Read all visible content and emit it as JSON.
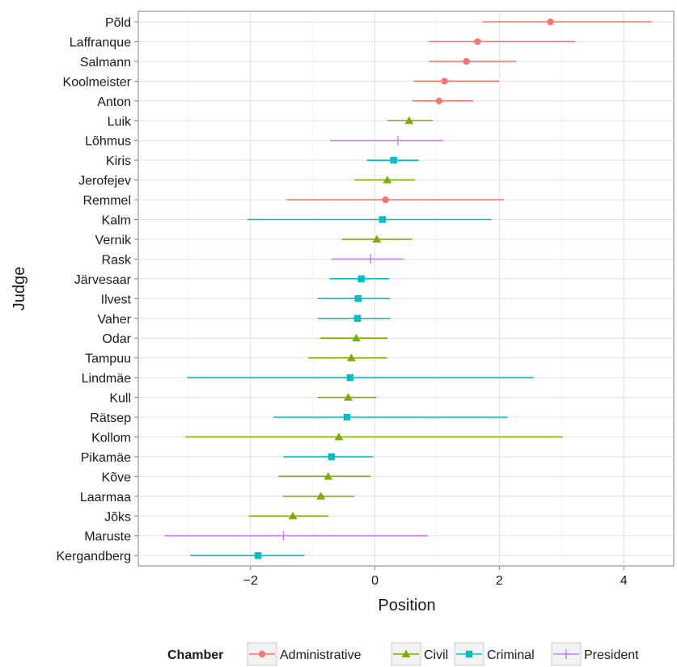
{
  "chart_data": {
    "type": "scatter",
    "xlabel": "Position",
    "ylabel": "Judge",
    "xlim": [
      -3.7,
      4.7
    ],
    "x_ticks": [
      -2,
      0,
      2,
      4
    ],
    "x_tick_labels": [
      "−2",
      "0",
      "2",
      "4"
    ],
    "grid": true,
    "legend_placement": "bottom",
    "legend_title": "Chamber",
    "legend": [
      {
        "name": "Administrative",
        "color": "#F8766D",
        "shape": "circle"
      },
      {
        "name": "Civil",
        "color": "#7CAE00",
        "shape": "triangle"
      },
      {
        "name": "Criminal",
        "color": "#00BFC4",
        "shape": "square"
      },
      {
        "name": "President",
        "color": "#C77CFF",
        "shape": "plus"
      }
    ],
    "judges": [
      {
        "name": "Põld",
        "chamber": "Administrative",
        "estimate": 2.82,
        "lower": 1.73,
        "upper": 4.45
      },
      {
        "name": "Laffranque",
        "chamber": "Administrative",
        "estimate": 1.65,
        "lower": 0.87,
        "upper": 3.22
      },
      {
        "name": "Salmann",
        "chamber": "Administrative",
        "estimate": 1.47,
        "lower": 0.87,
        "upper": 2.27
      },
      {
        "name": "Koolmeister",
        "chamber": "Administrative",
        "estimate": 1.12,
        "lower": 0.62,
        "upper": 2.0
      },
      {
        "name": "Anton",
        "chamber": "Administrative",
        "estimate": 1.03,
        "lower": 0.6,
        "upper": 1.58
      },
      {
        "name": "Luik",
        "chamber": "Civil",
        "estimate": 0.55,
        "lower": 0.2,
        "upper": 0.93
      },
      {
        "name": "Lõhmus",
        "chamber": "President",
        "estimate": 0.37,
        "lower": -0.72,
        "upper": 1.1
      },
      {
        "name": "Kiris",
        "chamber": "Criminal",
        "estimate": 0.3,
        "lower": -0.13,
        "upper": 0.7
      },
      {
        "name": "Jerofejev",
        "chamber": "Civil",
        "estimate": 0.2,
        "lower": -0.33,
        "upper": 0.64
      },
      {
        "name": "Remmel",
        "chamber": "Administrative",
        "estimate": 0.17,
        "lower": -1.42,
        "upper": 2.07
      },
      {
        "name": "Kalm",
        "chamber": "Criminal",
        "estimate": 0.12,
        "lower": -2.05,
        "upper": 1.87
      },
      {
        "name": "Vernik",
        "chamber": "Civil",
        "estimate": 0.03,
        "lower": -0.53,
        "upper": 0.6
      },
      {
        "name": "Rask",
        "chamber": "President",
        "estimate": -0.07,
        "lower": -0.7,
        "upper": 0.46
      },
      {
        "name": "Järvesaar",
        "chamber": "Criminal",
        "estimate": -0.22,
        "lower": -0.73,
        "upper": 0.23
      },
      {
        "name": "Ilvest",
        "chamber": "Criminal",
        "estimate": -0.27,
        "lower": -0.92,
        "upper": 0.24
      },
      {
        "name": "Vaher",
        "chamber": "Criminal",
        "estimate": -0.28,
        "lower": -0.92,
        "upper": 0.25
      },
      {
        "name": "Odar",
        "chamber": "Civil",
        "estimate": -0.3,
        "lower": -0.88,
        "upper": 0.2
      },
      {
        "name": "Tampuu",
        "chamber": "Civil",
        "estimate": -0.38,
        "lower": -1.07,
        "upper": 0.19
      },
      {
        "name": "Lindmäe",
        "chamber": "Criminal",
        "estimate": -0.4,
        "lower": -3.02,
        "upper": 2.55
      },
      {
        "name": "Kull",
        "chamber": "Civil",
        "estimate": -0.43,
        "lower": -0.92,
        "upper": 0.02
      },
      {
        "name": "Rätsep",
        "chamber": "Criminal",
        "estimate": -0.45,
        "lower": -1.63,
        "upper": 2.13
      },
      {
        "name": "Kollom",
        "chamber": "Civil",
        "estimate": -0.58,
        "lower": -3.05,
        "upper": 3.02
      },
      {
        "name": "Pikamäe",
        "chamber": "Criminal",
        "estimate": -0.7,
        "lower": -1.47,
        "upper": -0.03
      },
      {
        "name": "Kõve",
        "chamber": "Civil",
        "estimate": -0.75,
        "lower": -1.55,
        "upper": -0.07
      },
      {
        "name": "Laarmaa",
        "chamber": "Civil",
        "estimate": -0.87,
        "lower": -1.48,
        "upper": -0.33
      },
      {
        "name": "Jõks",
        "chamber": "Civil",
        "estimate": -1.32,
        "lower": -2.03,
        "upper": -0.75
      },
      {
        "name": "Maruste",
        "chamber": "President",
        "estimate": -1.47,
        "lower": -3.38,
        "upper": 0.85
      },
      {
        "name": "Kergandberg",
        "chamber": "Criminal",
        "estimate": -1.88,
        "lower": -2.97,
        "upper": -1.13
      }
    ]
  }
}
